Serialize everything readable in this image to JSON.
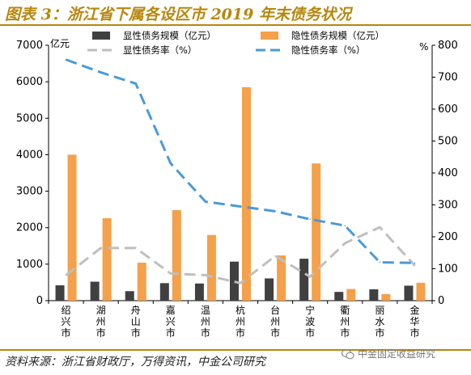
{
  "header": {
    "title": "图表 3：浙江省下属各设区市 2019 年末债务状况"
  },
  "footer": {
    "source": "资料来源：浙江省财政厅，万得资讯，中金公司研究",
    "watermark": "中金固定收益研究"
  },
  "colors": {
    "explicit_bar": "#404040",
    "hidden_bar": "#f5a04a",
    "explicit_rate": "#bfbfbf",
    "hidden_rate": "#4a9ad8",
    "title": "#b8860b"
  },
  "chart_data": {
    "type": "bar",
    "categories": [
      "绍兴市",
      "湖州市",
      "舟山市",
      "嘉兴市",
      "温州市",
      "杭州市",
      "台州市",
      "宁波市",
      "衢州市",
      "丽水市",
      "金华市"
    ],
    "left_axis": {
      "label": "亿元",
      "ylim": [
        0,
        7000
      ],
      "ticks": [
        0,
        1000,
        2000,
        3000,
        4000,
        5000,
        6000,
        7000
      ]
    },
    "right_axis": {
      "label": "%",
      "ylim": [
        0,
        800
      ],
      "ticks": [
        0,
        100,
        200,
        300,
        400,
        500,
        600,
        700,
        800
      ]
    },
    "series": [
      {
        "name": "显性债务规模（亿元）",
        "type": "bar",
        "axis": "left",
        "values": [
          420,
          520,
          260,
          480,
          470,
          1070,
          610,
          1150,
          240,
          310,
          410
        ]
      },
      {
        "name": "隐性债务规模（亿元）",
        "type": "bar",
        "axis": "left",
        "values": [
          4000,
          2260,
          1040,
          2480,
          1800,
          5850,
          1240,
          3760,
          320,
          180,
          490
        ]
      },
      {
        "name": "显性债务率（%）",
        "type": "line",
        "axis": "right",
        "style": "dashed",
        "values": [
          80,
          165,
          165,
          85,
          80,
          55,
          140,
          75,
          180,
          230,
          110
        ]
      },
      {
        "name": "隐性债务率（%）",
        "type": "line",
        "axis": "right",
        "style": "dashed",
        "values": [
          755,
          715,
          680,
          430,
          310,
          295,
          280,
          255,
          235,
          120,
          118
        ]
      }
    ],
    "legend_position": "top",
    "grid": false
  }
}
